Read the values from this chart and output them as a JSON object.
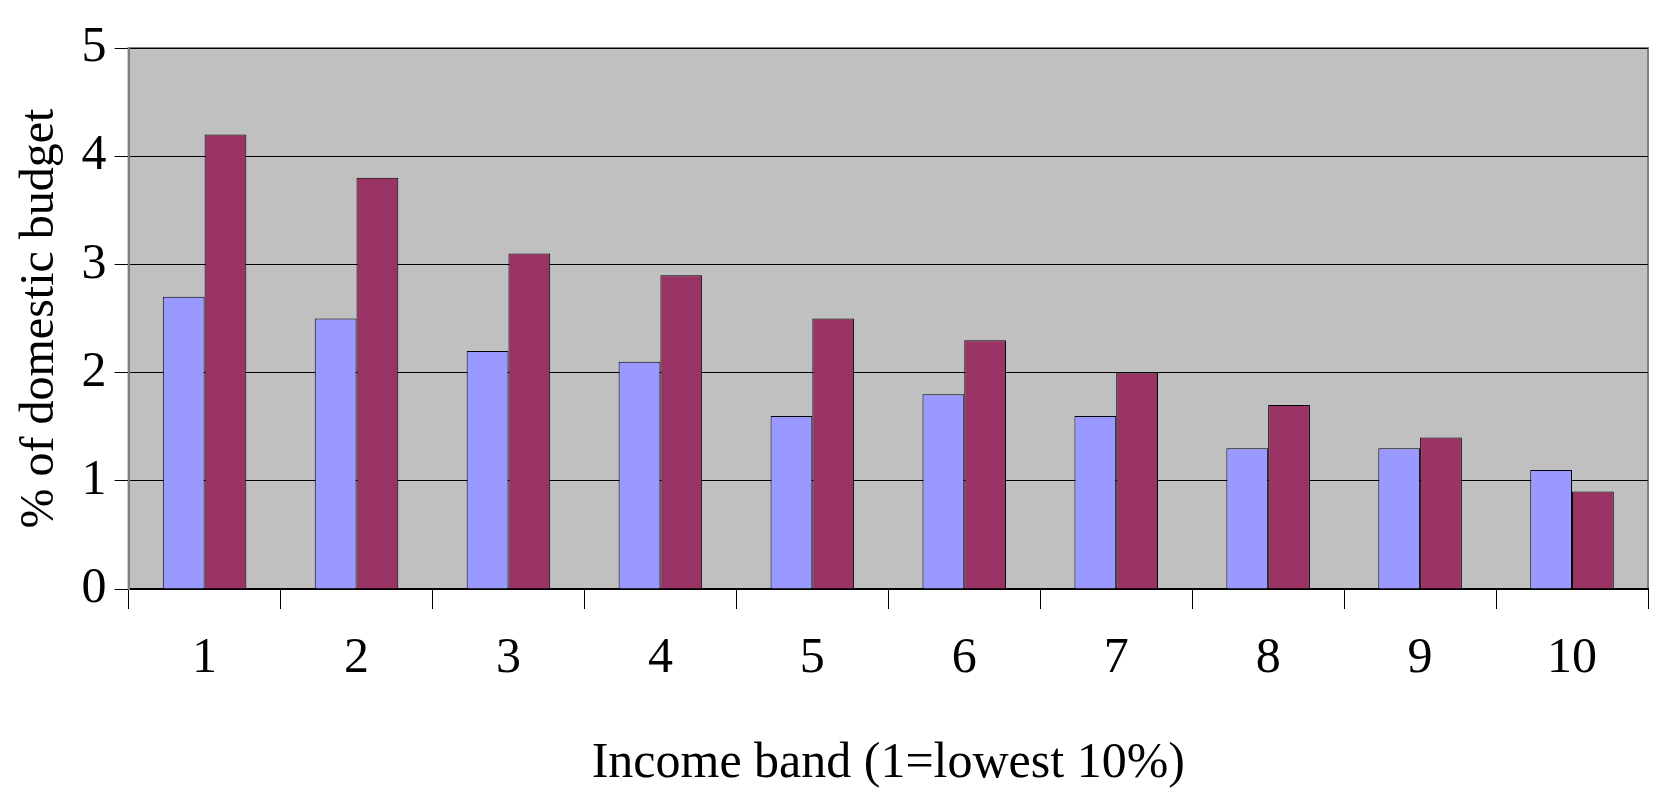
{
  "chart_data": {
    "type": "bar",
    "xlabel": "Income band (1=lowest 10%)",
    "ylabel": "% of domestic budget",
    "categories": [
      "1",
      "2",
      "3",
      "4",
      "5",
      "6",
      "7",
      "8",
      "9",
      "10"
    ],
    "series": [
      {
        "color": "#9999ff",
        "values": [
          2.7,
          2.5,
          2.2,
          2.1,
          1.6,
          1.8,
          1.6,
          1.3,
          1.3,
          1.1
        ]
      },
      {
        "color": "#993366",
        "values": [
          4.2,
          3.8,
          3.1,
          2.9,
          2.5,
          2.3,
          2.0,
          1.7,
          1.4,
          0.9
        ]
      }
    ],
    "ylim": [
      0,
      5
    ],
    "yticks": [
      0,
      1,
      2,
      3,
      4,
      5
    ],
    "grid": "y",
    "legend": false
  }
}
